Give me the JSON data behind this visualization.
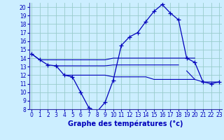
{
  "title": "Graphe des températures (°c)",
  "bg_color": "#cceeff",
  "line_color": "#0000bb",
  "grid_color": "#99cccc",
  "hours": [
    0,
    1,
    2,
    3,
    4,
    5,
    6,
    7,
    8,
    9,
    10,
    11,
    12,
    13,
    14,
    15,
    16,
    17,
    18,
    19,
    20,
    21,
    22,
    23
  ],
  "series": {
    "main": [
      14.5,
      13.8,
      13.2,
      13.1,
      12.0,
      11.8,
      10.0,
      8.2,
      7.7,
      8.8,
      11.4,
      15.5,
      16.5,
      17.0,
      18.3,
      19.5,
      20.3,
      19.3,
      18.5,
      14.0,
      13.5,
      11.2,
      11.0,
      11.2
    ],
    "flat1": [
      14.5,
      13.8,
      13.8,
      13.8,
      13.8,
      13.8,
      13.8,
      13.8,
      13.8,
      13.8,
      14.0,
      14.0,
      14.0,
      14.0,
      14.0,
      14.0,
      14.0,
      14.0,
      14.0,
      14.0,
      14.0,
      null,
      null,
      null
    ],
    "flat2": [
      null,
      null,
      null,
      13.1,
      13.1,
      13.1,
      13.1,
      13.1,
      13.1,
      13.1,
      13.2,
      13.2,
      13.2,
      13.2,
      13.2,
      13.2,
      13.2,
      13.2,
      13.2,
      null,
      null,
      null,
      null,
      null
    ],
    "flat3": [
      null,
      null,
      null,
      null,
      12.0,
      12.0,
      12.0,
      12.0,
      12.0,
      12.0,
      11.8,
      11.8,
      11.8,
      11.8,
      11.8,
      11.5,
      11.5,
      11.5,
      11.5,
      11.5,
      11.5,
      null,
      null,
      null
    ],
    "flat4": [
      null,
      null,
      null,
      null,
      null,
      null,
      null,
      null,
      null,
      null,
      null,
      null,
      null,
      null,
      null,
      null,
      null,
      null,
      null,
      12.5,
      11.5,
      11.2,
      11.2,
      11.2
    ]
  },
  "ylim": [
    8,
    20.5
  ],
  "xlim": [
    -0.3,
    23.3
  ],
  "yticks": [
    8,
    9,
    10,
    11,
    12,
    13,
    14,
    15,
    16,
    17,
    18,
    19,
    20
  ],
  "xticks": [
    0,
    1,
    2,
    3,
    4,
    5,
    6,
    7,
    8,
    9,
    10,
    11,
    12,
    13,
    14,
    15,
    16,
    17,
    18,
    19,
    20,
    21,
    22,
    23
  ],
  "xlabel_fontsize": 7,
  "tick_fontsize": 5.5,
  "border_color": "#3333aa"
}
